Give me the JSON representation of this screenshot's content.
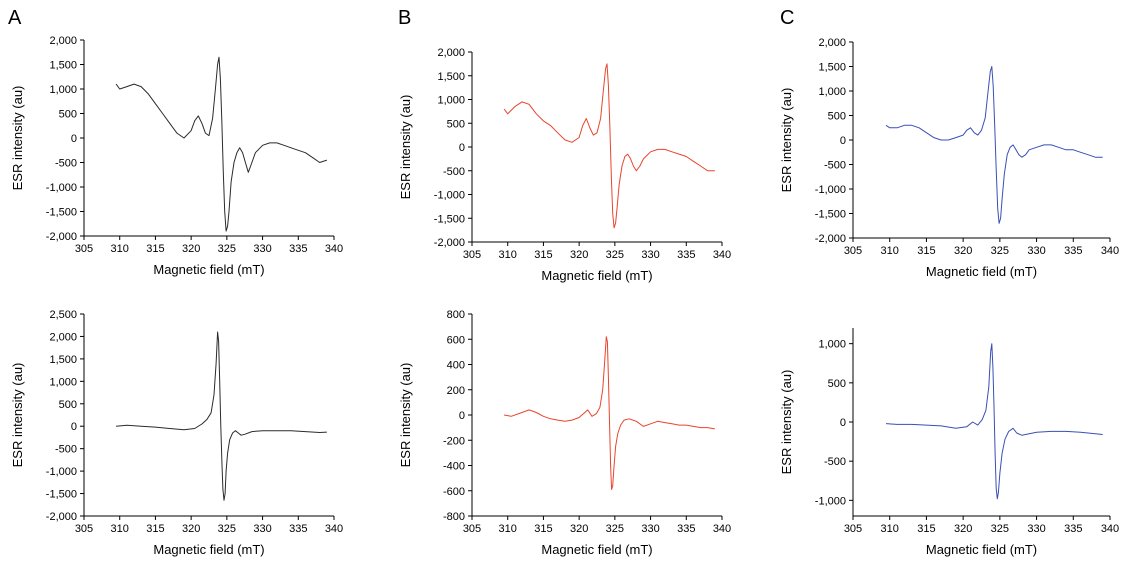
{
  "panel_letters": [
    "A",
    "B",
    "C"
  ],
  "colors": {
    "black": "#2b2b2b",
    "red": "#e8452c",
    "blue": "#3a4fb5"
  },
  "chart_data": [
    {
      "type": "line",
      "panel": "A",
      "row": "top",
      "color": "#2b2b2b",
      "xlabel": "Magnetic field (mT)",
      "ylabel": "ESR intensity (au)",
      "xlim": [
        305,
        340
      ],
      "xticks": [
        305,
        310,
        315,
        320,
        325,
        330,
        335,
        340
      ],
      "ylim": [
        -2000,
        2000
      ],
      "yticks": [
        -2000,
        -1500,
        -1000,
        -500,
        0,
        500,
        1000,
        1500,
        2000
      ],
      "ytick_labels": [
        "-2,000",
        "-1,500",
        "-1,000",
        "-500",
        "0",
        "500",
        "1,000",
        "1,500",
        "2,000"
      ],
      "series": [
        {
          "x": [
            309.5,
            310,
            311,
            312,
            313,
            314,
            315,
            316,
            317,
            318,
            319,
            320,
            320.5,
            321,
            321.5,
            322,
            322.5,
            323,
            323.4,
            323.7,
            323.9,
            324.1,
            324.3,
            324.5,
            324.7,
            324.9,
            325.1,
            325.3,
            325.6,
            326,
            326.4,
            326.8,
            327.2,
            327.6,
            328,
            328.5,
            329,
            330,
            331,
            332,
            333,
            334,
            335,
            336,
            337,
            338,
            339
          ],
          "y": [
            1100,
            1000,
            1050,
            1100,
            1050,
            900,
            700,
            500,
            300,
            100,
            0,
            150,
            350,
            450,
            300,
            100,
            50,
            400,
            1000,
            1500,
            1650,
            1200,
            300,
            -700,
            -1500,
            -1900,
            -1800,
            -1500,
            -900,
            -500,
            -300,
            -200,
            -300,
            -500,
            -700,
            -500,
            -300,
            -150,
            -100,
            -100,
            -150,
            -200,
            -250,
            -300,
            -400,
            -500,
            -450
          ]
        }
      ]
    },
    {
      "type": "line",
      "panel": "B",
      "row": "top",
      "color": "#e8452c",
      "xlabel": "Magnetic field (mT)",
      "ylabel": "ESR intensity (au)",
      "xlim": [
        305,
        340
      ],
      "xticks": [
        305,
        310,
        315,
        320,
        325,
        330,
        335,
        340
      ],
      "ylim": [
        -2000,
        2000
      ],
      "yticks": [
        -2000,
        -1500,
        -1000,
        -500,
        0,
        500,
        1000,
        1500,
        2000
      ],
      "ytick_labels": [
        "-2,000",
        "-1,500",
        "-1,000",
        "-500",
        "0",
        "500",
        "1,000",
        "1,500",
        "2,000"
      ],
      "series": [
        {
          "x": [
            309.5,
            310,
            311,
            312,
            313,
            314,
            315,
            316,
            317,
            318,
            319,
            320,
            320.5,
            321,
            321.5,
            322,
            322.5,
            323,
            323.4,
            323.7,
            323.9,
            324.1,
            324.3,
            324.5,
            324.7,
            324.9,
            325.1,
            325.3,
            325.6,
            326,
            326.4,
            326.8,
            327.2,
            327.6,
            328,
            328.5,
            329,
            330,
            331,
            332,
            333,
            334,
            335,
            336,
            337,
            338,
            339
          ],
          "y": [
            800,
            700,
            850,
            950,
            900,
            700,
            550,
            450,
            300,
            150,
            100,
            200,
            450,
            600,
            400,
            250,
            300,
            600,
            1200,
            1650,
            1750,
            1300,
            400,
            -600,
            -1400,
            -1700,
            -1600,
            -1300,
            -800,
            -400,
            -200,
            -150,
            -250,
            -400,
            -500,
            -400,
            -250,
            -100,
            -50,
            -50,
            -100,
            -150,
            -200,
            -300,
            -400,
            -500,
            -500
          ]
        }
      ]
    },
    {
      "type": "line",
      "panel": "C",
      "row": "top",
      "color": "#3a4fb5",
      "xlabel": "Magnetic field (mT)",
      "ylabel": "ESR intensity (au)",
      "xlim": [
        305,
        340
      ],
      "xticks": [
        305,
        310,
        315,
        320,
        325,
        330,
        335,
        340
      ],
      "ylim": [
        -2000,
        2000
      ],
      "yticks": [
        -2000,
        -1500,
        -1000,
        -500,
        0,
        500,
        1000,
        1500,
        2000
      ],
      "ytick_labels": [
        "-2,000",
        "-1,500",
        "-1,000",
        "-500",
        "0",
        "500",
        "1,000",
        "1,500",
        "2,000"
      ],
      "series": [
        {
          "x": [
            309.5,
            310,
            311,
            312,
            313,
            314,
            315,
            316,
            317,
            318,
            319,
            320,
            320.5,
            321,
            321.5,
            322,
            322.5,
            323,
            323.4,
            323.7,
            323.9,
            324.1,
            324.3,
            324.5,
            324.7,
            324.9,
            325.1,
            325.3,
            325.6,
            326,
            326.4,
            326.8,
            327.2,
            327.6,
            328,
            328.5,
            329,
            330,
            331,
            332,
            333,
            334,
            335,
            336,
            337,
            338,
            339
          ],
          "y": [
            300,
            250,
            250,
            300,
            300,
            250,
            150,
            50,
            0,
            0,
            50,
            100,
            200,
            250,
            150,
            100,
            200,
            450,
            1000,
            1400,
            1500,
            1100,
            300,
            -600,
            -1400,
            -1700,
            -1600,
            -1200,
            -700,
            -300,
            -150,
            -100,
            -200,
            -300,
            -350,
            -300,
            -200,
            -150,
            -100,
            -100,
            -150,
            -200,
            -200,
            -250,
            -300,
            -350,
            -350
          ]
        }
      ]
    },
    {
      "type": "line",
      "panel": "A",
      "row": "bottom",
      "color": "#2b2b2b",
      "xlabel": "Magnetic field (mT)",
      "ylabel": "ESR intensity (au)",
      "xlim": [
        305,
        340
      ],
      "xticks": [
        305,
        310,
        315,
        320,
        325,
        330,
        335,
        340
      ],
      "ylim": [
        -2000,
        2500
      ],
      "yticks": [
        -2000,
        -1500,
        -1000,
        -500,
        0,
        500,
        1000,
        1500,
        2000,
        2500
      ],
      "ytick_labels": [
        "-2,000",
        "-1,500",
        "-1,000",
        "-500",
        "0",
        "500",
        "1,000",
        "1,500",
        "2,000",
        "2,500"
      ],
      "series": [
        {
          "x": [
            309.5,
            311,
            313,
            315,
            317,
            319,
            320.5,
            321.5,
            322.2,
            322.8,
            323.2,
            323.5,
            323.7,
            323.85,
            324,
            324.15,
            324.3,
            324.45,
            324.6,
            324.75,
            324.9,
            325.1,
            325.4,
            325.8,
            326.2,
            326.6,
            327,
            327.5,
            328.5,
            330,
            332,
            334,
            336,
            338,
            339
          ],
          "y": [
            0,
            20,
            0,
            -20,
            -50,
            -80,
            -50,
            50,
            150,
            300,
            700,
            1400,
            2100,
            1900,
            1000,
            0,
            -800,
            -1400,
            -1650,
            -1500,
            -1000,
            -600,
            -300,
            -150,
            -100,
            -150,
            -200,
            -180,
            -120,
            -100,
            -100,
            -100,
            -120,
            -140,
            -130
          ]
        }
      ]
    },
    {
      "type": "line",
      "panel": "B",
      "row": "bottom",
      "color": "#e8452c",
      "xlabel": "Magnetic field (mT)",
      "ylabel": "ESR intensity (au)",
      "xlim": [
        305,
        340
      ],
      "xticks": [
        305,
        310,
        315,
        320,
        325,
        330,
        335,
        340
      ],
      "ylim": [
        -800,
        800
      ],
      "yticks": [
        -800,
        -600,
        -400,
        -200,
        0,
        200,
        400,
        600,
        800
      ],
      "ytick_labels": [
        "-800",
        "-600",
        "-400",
        "-200",
        "0",
        "200",
        "400",
        "600",
        "800"
      ],
      "series": [
        {
          "x": [
            309.5,
            310.5,
            312,
            313,
            314,
            315,
            316,
            317,
            318,
            319,
            320,
            320.6,
            321.2,
            321.8,
            322.4,
            322.9,
            323.3,
            323.6,
            323.8,
            323.95,
            324.1,
            324.25,
            324.4,
            324.55,
            324.7,
            324.9,
            325.1,
            325.4,
            325.8,
            326.3,
            327,
            328,
            329,
            330,
            331,
            332,
            333,
            334,
            335,
            336,
            337,
            338,
            339
          ],
          "y": [
            0,
            -10,
            20,
            40,
            20,
            -10,
            -30,
            -40,
            -50,
            -40,
            -20,
            10,
            40,
            -10,
            10,
            60,
            200,
            450,
            620,
            580,
            300,
            -50,
            -400,
            -590,
            -560,
            -400,
            -250,
            -150,
            -80,
            -40,
            -30,
            -50,
            -90,
            -70,
            -50,
            -60,
            -70,
            -80,
            -80,
            -90,
            -100,
            -100,
            -110
          ]
        }
      ]
    },
    {
      "type": "line",
      "panel": "C",
      "row": "bottom",
      "color": "#3a4fb5",
      "xlabel": "Magnetic field (mT)",
      "ylabel": "ESR intensity (au)",
      "xlim": [
        305,
        340
      ],
      "xticks": [
        305,
        310,
        315,
        320,
        325,
        330,
        335,
        340
      ],
      "ylim": [
        -1200,
        1200
      ],
      "yticks": [
        -1000,
        -500,
        0,
        500,
        1000
      ],
      "ytick_labels": [
        "-1,000",
        "-500",
        "0",
        "500",
        "1,000"
      ],
      "series": [
        {
          "x": [
            309.5,
            311,
            313,
            315,
            317,
            319,
            320.5,
            321.3,
            322,
            322.6,
            323.1,
            323.5,
            323.75,
            323.9,
            324.05,
            324.2,
            324.35,
            324.5,
            324.65,
            324.8,
            325,
            325.3,
            325.7,
            326.2,
            326.8,
            327.3,
            328,
            329,
            330,
            332,
            334,
            336,
            338,
            339
          ],
          "y": [
            -20,
            -30,
            -30,
            -40,
            -50,
            -80,
            -60,
            0,
            -40,
            30,
            150,
            450,
            900,
            1000,
            700,
            200,
            -400,
            -850,
            -980,
            -900,
            -650,
            -400,
            -220,
            -120,
            -80,
            -140,
            -170,
            -150,
            -130,
            -120,
            -120,
            -130,
            -150,
            -160
          ]
        }
      ]
    }
  ]
}
